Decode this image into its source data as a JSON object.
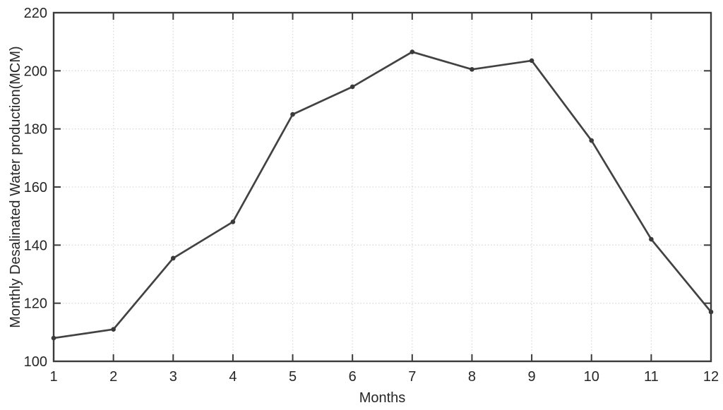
{
  "figure": {
    "background": "#ffffff"
  },
  "chart_data": {
    "type": "line",
    "title": "",
    "xlabel": "Months",
    "ylabel": "Monthly Desalinated Water production(MCM)",
    "x": [
      1,
      2,
      3,
      4,
      5,
      6,
      7,
      8,
      9,
      10,
      11,
      12
    ],
    "values": [
      108,
      111,
      135.5,
      148,
      185,
      194.5,
      206.5,
      200.5,
      203.5,
      176,
      142,
      117
    ],
    "xlim": [
      1,
      12
    ],
    "ylim": [
      100,
      220
    ],
    "xticks": [
      1,
      2,
      3,
      4,
      5,
      6,
      7,
      8,
      9,
      10,
      11,
      12
    ],
    "xtick_labels": [
      "1",
      "2",
      "3",
      "4",
      "5",
      "6",
      "7",
      "8",
      "9",
      "10",
      "11",
      "12"
    ],
    "yticks": [
      100,
      120,
      140,
      160,
      180,
      200,
      220
    ],
    "ytick_labels": [
      "100",
      "120",
      "140",
      "160",
      "180",
      "200",
      "220"
    ],
    "grid": true,
    "grid_style": "dotted",
    "legend": "none",
    "line_color": "#424242",
    "marker": "filled-dot",
    "marker_color": "#3a3a3a",
    "axis_color": "#3a3a3a",
    "grid_color": "#d9d9d9",
    "text_color": "#262626"
  }
}
